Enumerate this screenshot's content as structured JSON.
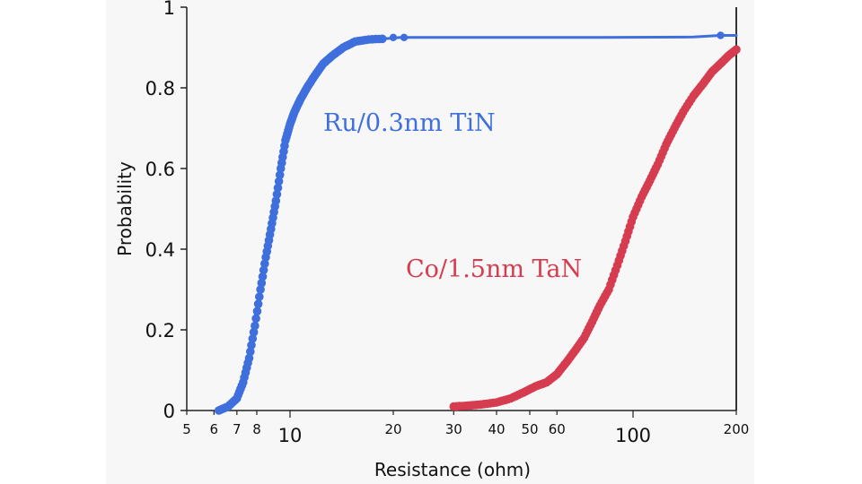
{
  "chart_data": {
    "type": "line",
    "title": "",
    "xlabel": "Resistance (ohm)",
    "ylabel": "Probability",
    "x_scale": "log",
    "xlim": [
      5,
      200
    ],
    "ylim": [
      0,
      1
    ],
    "y_ticks": [
      {
        "value": 0,
        "label": "0"
      },
      {
        "value": 0.2,
        "label": "0.2"
      },
      {
        "value": 0.4,
        "label": "0.4"
      },
      {
        "value": 0.6,
        "label": "0.6"
      },
      {
        "value": 0.8,
        "label": "0.8"
      },
      {
        "value": 1,
        "label": "1"
      }
    ],
    "x_ticks": [
      {
        "value": 5,
        "label": "5",
        "major": false
      },
      {
        "value": 6,
        "label": "6",
        "major": false
      },
      {
        "value": 7,
        "label": "7",
        "major": false
      },
      {
        "value": 8,
        "label": "8",
        "major": false
      },
      {
        "value": 10,
        "label": "10",
        "major": true
      },
      {
        "value": 20,
        "label": "20",
        "major": false
      },
      {
        "value": 30,
        "label": "30",
        "major": false
      },
      {
        "value": 40,
        "label": "40",
        "major": false
      },
      {
        "value": 50,
        "label": "50",
        "major": false
      },
      {
        "value": 60,
        "label": "60",
        "major": false
      },
      {
        "value": 100,
        "label": "100",
        "major": true
      },
      {
        "value": 200,
        "label": "200",
        "major": false
      }
    ],
    "grid": false,
    "series": [
      {
        "name": "Ru/0.3nm TiN",
        "color": "#3f6fdd",
        "x": [
          6.2,
          6.6,
          7.0,
          7.3,
          7.6,
          7.9,
          8.2,
          8.5,
          8.8,
          9.1,
          9.4,
          9.7,
          10.0,
          10.3,
          10.7,
          11.2,
          11.8,
          12.5,
          13.3,
          14.3,
          15.5,
          17.0,
          19.0,
          21.0,
          40.0,
          80.0,
          150.0,
          180.0,
          200.0
        ],
        "y": [
          0.0,
          0.01,
          0.03,
          0.07,
          0.13,
          0.21,
          0.3,
          0.38,
          0.45,
          0.52,
          0.6,
          0.67,
          0.71,
          0.74,
          0.77,
          0.8,
          0.83,
          0.86,
          0.88,
          0.9,
          0.915,
          0.92,
          0.922,
          0.925,
          0.925,
          0.925,
          0.926,
          0.93,
          0.93
        ]
      },
      {
        "name": "Co/1.5nm TaN",
        "color": "#d63c4f",
        "x": [
          30,
          33,
          36,
          40,
          44,
          48,
          52,
          56,
          60,
          64,
          68,
          72,
          76,
          80,
          85,
          90,
          95,
          100,
          106,
          112,
          118,
          125,
          132,
          140,
          150,
          160,
          170,
          180,
          190,
          200
        ],
        "y": [
          0.01,
          0.012,
          0.015,
          0.02,
          0.03,
          0.045,
          0.06,
          0.07,
          0.09,
          0.12,
          0.15,
          0.18,
          0.22,
          0.26,
          0.3,
          0.36,
          0.42,
          0.48,
          0.53,
          0.57,
          0.61,
          0.66,
          0.7,
          0.74,
          0.78,
          0.81,
          0.84,
          0.86,
          0.88,
          0.895
        ]
      }
    ],
    "annotations": [
      {
        "text": "Ru/0.3nm TiN",
        "series": 0
      },
      {
        "text": "Co/1.5nm TaN",
        "series": 1
      }
    ]
  }
}
